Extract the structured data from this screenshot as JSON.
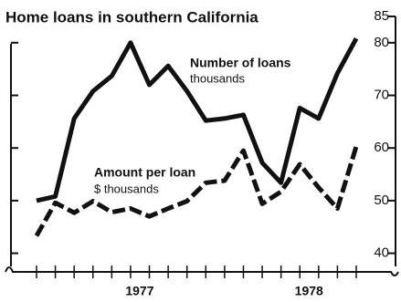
{
  "chart_data": {
    "type": "line",
    "title": "Home loans in southern California",
    "annotations": [
      "Number of loans",
      "thousands",
      "Amount per loan",
      "$ thousands"
    ],
    "categories": [
      null,
      null,
      null,
      null,
      null,
      "1977",
      null,
      null,
      null,
      null,
      null,
      null,
      null,
      null,
      "1978",
      null,
      null,
      null
    ],
    "series": [
      {
        "name": "Number of loans",
        "color": "#111111",
        "values": [
          50,
          50.8,
          65.6,
          70.8,
          73.7,
          80,
          72,
          75.6,
          70.8,
          65.2,
          65.6,
          66.3,
          57.2,
          53.4,
          67.6,
          65.6,
          74.2,
          80.8
        ]
      },
      {
        "name": "Amount per loan",
        "color": "#111111",
        "values": [
          43.3,
          49.6,
          47.7,
          49.9,
          47.8,
          48.5,
          47,
          48.5,
          49.9,
          53.4,
          53.8,
          59.5,
          49.4,
          51.7,
          56.9,
          52.5,
          48.5,
          60.3
        ]
      }
    ],
    "ylim": [
      37.5,
      85
    ],
    "yticks": [
      40,
      50,
      60,
      70,
      80,
      85
    ]
  }
}
